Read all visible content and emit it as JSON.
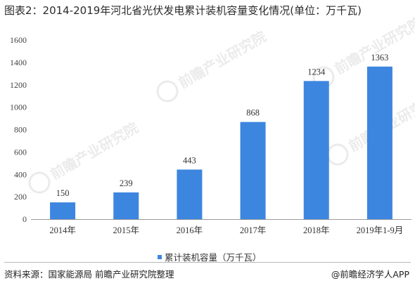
{
  "title": "图表2：2014-2019年河北省光伏发电累计装机容量变化情况(单位：万千瓦)",
  "source": "资料来源：国家能源局 前瞻产业研究院整理",
  "brand": "@前瞻经济学人APP",
  "watermark": {
    "text": "前瞻产业研究院"
  },
  "colors": {
    "bar": "#3d86e0",
    "axis": "#999999"
  },
  "chart_data": {
    "type": "bar",
    "title": "图表2：2014-2019年河北省光伏发电累计装机容量变化情况(单位：万千瓦)",
    "categories": [
      "2014年",
      "2015年",
      "2016年",
      "2017年",
      "2018年",
      "2019年1-9月"
    ],
    "series": [
      {
        "name": "累计装机容量（万千瓦）",
        "values": [
          150,
          239,
          443,
          868,
          1234,
          1363
        ]
      }
    ],
    "yticks": [
      0,
      200,
      400,
      600,
      800,
      1000,
      1200,
      1400,
      1600
    ],
    "ylim": [
      0,
      1600
    ],
    "xlabel": "",
    "ylabel": "",
    "grid": false,
    "legend": "bottom-center"
  }
}
